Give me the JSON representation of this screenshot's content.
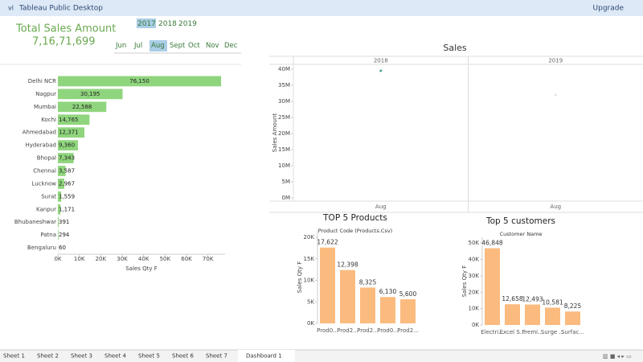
{
  "app": {
    "title": "Tableau Public Desktop",
    "action": "Upgrade"
  },
  "kpi": {
    "label": "Total Sales Amount",
    "value": "7,16,71,699"
  },
  "filters": {
    "years": [
      "2017",
      "2018",
      "2019"
    ],
    "selected_year": 0,
    "months": [
      "Jun",
      "Jul",
      "Aug",
      "Sept",
      "Oct",
      "Nov",
      "Dec"
    ],
    "selected_month": 2
  },
  "chart_data": [
    {
      "type": "hbar",
      "categories": [
        "Delhi NCR",
        "Nagpur",
        "Mumbai",
        "Kochi",
        "Ahmedabad",
        "Hyderabad",
        "Bhopal",
        "Chennai",
        "Lucknow",
        "Surat",
        "Kanpur",
        "Bhubaneshwar",
        "Patna",
        "Bengaluru"
      ],
      "values": [
        76150,
        30195,
        22588,
        14765,
        12371,
        9360,
        7343,
        3587,
        2967,
        1559,
        1171,
        391,
        294,
        60
      ],
      "value_labels": [
        "76,150",
        "30,195",
        "22,588",
        "14,765",
        "12,371",
        "9,360",
        "7,343",
        "3,587",
        "2,967",
        "1,559",
        "1,171",
        "391",
        "294",
        "60"
      ],
      "color": "#8fd57d",
      "xlim": [
        0,
        78000
      ],
      "xticks": [
        {
          "value": 0,
          "label": "0K"
        },
        {
          "value": 10000,
          "label": "10K"
        },
        {
          "value": 20000,
          "label": "20K"
        },
        {
          "value": 30000,
          "label": "30K"
        },
        {
          "value": 40000,
          "label": "40K"
        },
        {
          "value": 50000,
          "label": "50K"
        },
        {
          "value": 60000,
          "label": "60K"
        },
        {
          "value": 70000,
          "label": "70K"
        }
      ],
      "x_label": "Sales Qty F"
    },
    {
      "type": "scatter",
      "title": "Sales",
      "panels": [
        "2018",
        "2019"
      ],
      "categories": [
        "Aug",
        "Aug"
      ],
      "values": [
        39500000,
        32000000
      ],
      "colors": [
        "#4e9e8f",
        "#e2e2e2"
      ],
      "ylim": [
        -1000000,
        41500000
      ],
      "yticks": [
        {
          "value": 0,
          "label": "0M"
        },
        {
          "value": 5000000,
          "label": "5M"
        },
        {
          "value": 10000000,
          "label": "10M"
        },
        {
          "value": 15000000,
          "label": "15M"
        },
        {
          "value": 20000000,
          "label": "20M"
        },
        {
          "value": 25000000,
          "label": "25M"
        },
        {
          "value": 30000000,
          "label": "30M"
        },
        {
          "value": 35000000,
          "label": "35M"
        },
        {
          "value": 40000000,
          "label": "40M"
        }
      ],
      "y_label": "Sales Amount"
    },
    {
      "type": "bar",
      "title": "TOP 5 Products",
      "subtitle": "Product Code (Products.Csv)",
      "categories": [
        "Prod0...",
        "Prod2...",
        "Prod2...",
        "Prod0...",
        "Prod2..."
      ],
      "values": [
        17622,
        12398,
        8325,
        6130,
        5600
      ],
      "value_labels": [
        "17,622",
        "12,398",
        "8,325",
        "6,130",
        "5,600"
      ],
      "color": "#fbbb7f",
      "ylim": [
        0,
        21500
      ],
      "yticks": [
        {
          "value": 0,
          "label": "0K"
        },
        {
          "value": 5000,
          "label": "5K"
        },
        {
          "value": 10000,
          "label": "10K"
        },
        {
          "value": 15000,
          "label": "15K"
        },
        {
          "value": 20000,
          "label": "20K"
        }
      ],
      "y_label": "Sales Qty F"
    },
    {
      "type": "bar",
      "title": "Top 5 customers",
      "subtitle": "Customer Name",
      "categories": [
        "Electri...",
        "Excel S...",
        "Premi...",
        "Surge ...",
        "Surfac..."
      ],
      "values": [
        46848,
        12658,
        12493,
        10581,
        8225
      ],
      "value_labels": [
        "46,848",
        "12,658",
        "12,493",
        "10,581",
        "8,225"
      ],
      "color": "#fbbb7f",
      "ylim": [
        0,
        53500
      ],
      "yticks": [
        {
          "value": 0,
          "label": "0K"
        },
        {
          "value": 10000,
          "label": "10K"
        },
        {
          "value": 20000,
          "label": "20K"
        },
        {
          "value": 30000,
          "label": "30K"
        },
        {
          "value": 40000,
          "label": "40K"
        },
        {
          "value": 50000,
          "label": "50K"
        }
      ],
      "y_label": "Sales Qty F"
    }
  ],
  "tabs": [
    "Sheet 1",
    "Sheet 2",
    "Sheet 3",
    "Sheet 4",
    "Sheet 5",
    "Sheet 6",
    "Sheet 7",
    "Dashboard 1"
  ],
  "active_tab": 7
}
